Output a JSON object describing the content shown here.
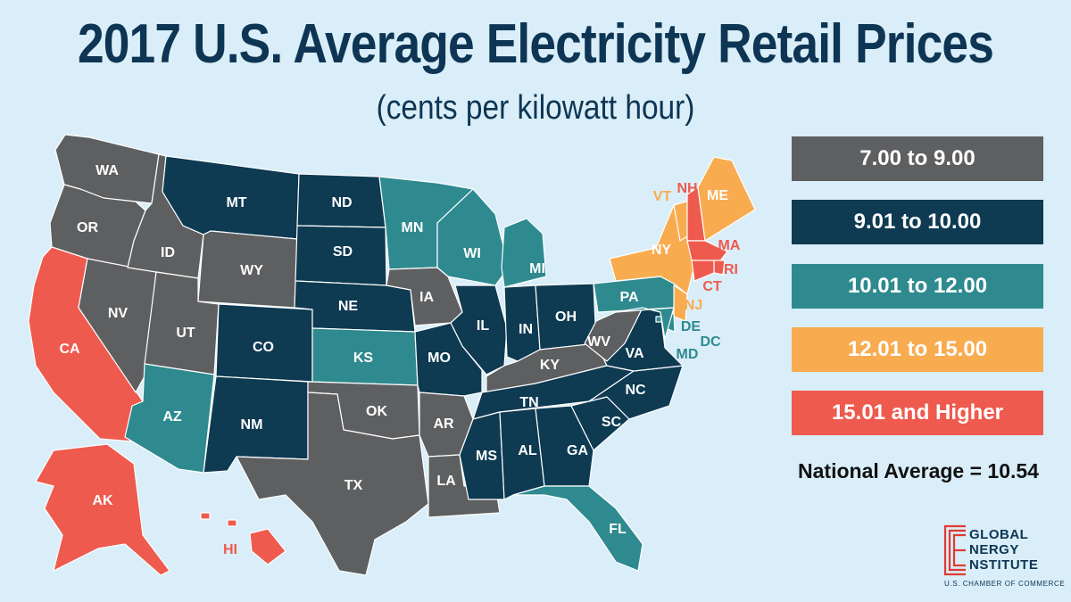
{
  "header": {
    "title": "2017 U.S. Average Electricity Retail Prices",
    "subtitle": "(cents per kilowatt hour)"
  },
  "colors": {
    "background": "#d9eef8",
    "border": "#ffffff"
  },
  "legend": {
    "items": [
      {
        "label": "7.00 to 9.00",
        "color": "#5e5f61"
      },
      {
        "label": "9.01 to 10.00",
        "color": "#0e3a52"
      },
      {
        "label": "10.01 to 12.00",
        "color": "#2e8a8f"
      },
      {
        "label": "12.01 to 15.00",
        "color": "#f8ac4f"
      },
      {
        "label": "15.01 and Higher",
        "color": "#ef5a4e"
      }
    ]
  },
  "national_average": "National Average = 10.54",
  "logo": {
    "line1": "GLOBAL",
    "line2": "NERGY",
    "line3": "NSTITUTE",
    "sub": "U.S. CHAMBER OF COMMERCE"
  },
  "states": [
    {
      "abbr": "WA",
      "tier": 0
    },
    {
      "abbr": "OR",
      "tier": 0
    },
    {
      "abbr": "CA",
      "tier": 4
    },
    {
      "abbr": "NV",
      "tier": 0
    },
    {
      "abbr": "ID",
      "tier": 0
    },
    {
      "abbr": "MT",
      "tier": 1
    },
    {
      "abbr": "WY",
      "tier": 0
    },
    {
      "abbr": "UT",
      "tier": 0
    },
    {
      "abbr": "AZ",
      "tier": 2
    },
    {
      "abbr": "CO",
      "tier": 1
    },
    {
      "abbr": "NM",
      "tier": 1
    },
    {
      "abbr": "ND",
      "tier": 1
    },
    {
      "abbr": "SD",
      "tier": 1
    },
    {
      "abbr": "NE",
      "tier": 1
    },
    {
      "abbr": "KS",
      "tier": 2
    },
    {
      "abbr": "OK",
      "tier": 0
    },
    {
      "abbr": "TX",
      "tier": 0
    },
    {
      "abbr": "MN",
      "tier": 2
    },
    {
      "abbr": "IA",
      "tier": 0
    },
    {
      "abbr": "MO",
      "tier": 1
    },
    {
      "abbr": "AR",
      "tier": 0
    },
    {
      "abbr": "LA",
      "tier": 0
    },
    {
      "abbr": "WI",
      "tier": 2
    },
    {
      "abbr": "IL",
      "tier": 1
    },
    {
      "abbr": "MI",
      "tier": 2
    },
    {
      "abbr": "IN",
      "tier": 1
    },
    {
      "abbr": "OH",
      "tier": 1
    },
    {
      "abbr": "KY",
      "tier": 0
    },
    {
      "abbr": "TN",
      "tier": 1
    },
    {
      "abbr": "MS",
      "tier": 1
    },
    {
      "abbr": "AL",
      "tier": 1
    },
    {
      "abbr": "GA",
      "tier": 1
    },
    {
      "abbr": "FL",
      "tier": 2
    },
    {
      "abbr": "SC",
      "tier": 1
    },
    {
      "abbr": "NC",
      "tier": 1
    },
    {
      "abbr": "VA",
      "tier": 1
    },
    {
      "abbr": "WV",
      "tier": 0
    },
    {
      "abbr": "PA",
      "tier": 2
    },
    {
      "abbr": "NY",
      "tier": 3
    },
    {
      "abbr": "VT",
      "tier": 3
    },
    {
      "abbr": "NH",
      "tier": 4
    },
    {
      "abbr": "ME",
      "tier": 3
    },
    {
      "abbr": "MA",
      "tier": 4
    },
    {
      "abbr": "RI",
      "tier": 4
    },
    {
      "abbr": "CT",
      "tier": 4
    },
    {
      "abbr": "NJ",
      "tier": 3
    },
    {
      "abbr": "DE",
      "tier": 2
    },
    {
      "abbr": "MD",
      "tier": 2
    },
    {
      "abbr": "DC",
      "tier": 2
    },
    {
      "abbr": "AK",
      "tier": 4
    },
    {
      "abbr": "HI",
      "tier": 4
    }
  ]
}
